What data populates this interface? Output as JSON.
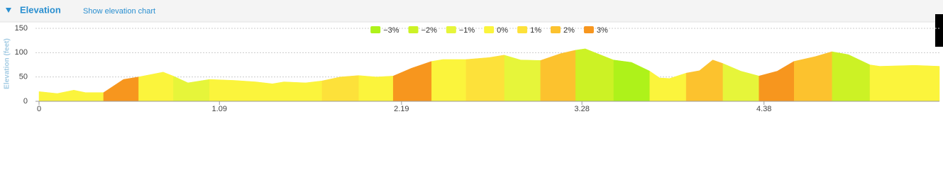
{
  "header": {
    "title": "Elevation",
    "link": "Show elevation chart"
  },
  "chart_data": {
    "type": "area",
    "y_label": "Elevation (feet)",
    "grid": true,
    "legend": "top",
    "xlim": [
      0,
      5.44
    ],
    "xticks": [
      0,
      1.09,
      2.19,
      3.28,
      4.38
    ],
    "ylim": [
      0,
      150
    ],
    "yticks": [
      0,
      50,
      100,
      150
    ],
    "x": [
      0,
      0.11,
      0.21,
      0.28,
      0.39,
      0.51,
      0.6,
      0.75,
      0.81,
      0.9,
      1.03,
      1.18,
      1.31,
      1.41,
      1.48,
      1.61,
      1.71,
      1.82,
      1.93,
      2.04,
      2.14,
      2.25,
      2.37,
      2.44,
      2.58,
      2.72,
      2.81,
      2.91,
      3.03,
      3.15,
      3.24,
      3.3,
      3.47,
      3.58,
      3.69,
      3.75,
      3.81,
      3.91,
      3.99,
      4.07,
      4.13,
      4.24,
      4.35,
      4.46,
      4.56,
      4.69,
      4.79,
      4.89,
      5.02,
      5.08,
      5.29,
      5.44
    ],
    "series": [
      {
        "name": "−3%",
        "color": "#aef21a",
        "values": [
          null,
          null,
          null,
          null,
          null,
          null,
          null,
          null,
          null,
          null,
          null,
          null,
          null,
          null,
          null,
          null,
          null,
          null,
          null,
          null,
          null,
          null,
          null,
          null,
          null,
          null,
          null,
          null,
          null,
          null,
          null,
          null,
          85,
          80,
          62,
          null,
          null,
          null,
          null,
          null,
          null,
          null,
          null,
          null,
          null,
          null,
          null,
          null,
          null,
          null,
          null,
          null
        ]
      },
      {
        "name": "−2%",
        "color": "#ccf225",
        "values": [
          null,
          null,
          null,
          null,
          null,
          null,
          null,
          null,
          null,
          null,
          null,
          null,
          null,
          null,
          null,
          null,
          null,
          null,
          null,
          null,
          null,
          null,
          null,
          null,
          null,
          null,
          null,
          null,
          null,
          null,
          105,
          108,
          85,
          null,
          null,
          null,
          null,
          null,
          null,
          null,
          null,
          null,
          null,
          null,
          null,
          null,
          102,
          96,
          75,
          null,
          null,
          null
        ]
      },
      {
        "name": "−1%",
        "color": "#e6f53a",
        "values": [
          null,
          null,
          null,
          null,
          null,
          null,
          null,
          null,
          52,
          38,
          45,
          null,
          null,
          null,
          null,
          null,
          null,
          null,
          null,
          null,
          null,
          null,
          null,
          null,
          null,
          null,
          95,
          85,
          84,
          null,
          null,
          null,
          null,
          null,
          null,
          null,
          null,
          null,
          null,
          null,
          78,
          62,
          52,
          null,
          null,
          null,
          null,
          null,
          null,
          null,
          null,
          null
        ]
      },
      {
        "name": "0%",
        "color": "#fbf43c",
        "values": [
          20,
          16,
          23,
          18,
          18,
          null,
          50,
          60,
          52,
          null,
          45,
          43,
          40,
          36,
          40,
          38,
          42,
          null,
          53,
          50,
          52,
          null,
          82,
          86,
          86,
          null,
          null,
          null,
          null,
          null,
          null,
          null,
          null,
          null,
          62,
          48,
          47,
          58,
          null,
          null,
          null,
          null,
          null,
          null,
          null,
          null,
          null,
          null,
          75,
          72,
          74,
          72
        ]
      },
      {
        "name": "1%",
        "color": "#fde13a",
        "values": [
          null,
          null,
          null,
          null,
          null,
          null,
          null,
          null,
          null,
          null,
          null,
          null,
          null,
          null,
          null,
          null,
          42,
          50,
          53,
          null,
          null,
          null,
          null,
          null,
          86,
          90,
          95,
          null,
          null,
          null,
          null,
          null,
          null,
          null,
          null,
          null,
          null,
          null,
          null,
          null,
          null,
          null,
          null,
          null,
          null,
          null,
          null,
          null,
          null,
          null,
          null,
          null
        ]
      },
      {
        "name": "2%",
        "color": "#fcc22e",
        "values": [
          null,
          null,
          null,
          null,
          null,
          null,
          null,
          null,
          null,
          null,
          null,
          null,
          null,
          null,
          null,
          null,
          null,
          null,
          null,
          null,
          null,
          null,
          null,
          null,
          null,
          null,
          null,
          null,
          84,
          98,
          105,
          null,
          null,
          null,
          null,
          null,
          null,
          58,
          63,
          85,
          78,
          null,
          null,
          null,
          82,
          92,
          102,
          null,
          null,
          null,
          null,
          null
        ]
      },
      {
        "name": "3%",
        "color": "#f7961e",
        "values": [
          null,
          null,
          null,
          null,
          18,
          45,
          50,
          null,
          null,
          null,
          null,
          null,
          null,
          null,
          null,
          null,
          null,
          null,
          null,
          null,
          52,
          68,
          82,
          null,
          null,
          null,
          null,
          null,
          null,
          null,
          null,
          null,
          null,
          null,
          null,
          null,
          null,
          null,
          null,
          null,
          null,
          null,
          52,
          62,
          82,
          null,
          null,
          null,
          null,
          null,
          null,
          null
        ]
      }
    ]
  }
}
